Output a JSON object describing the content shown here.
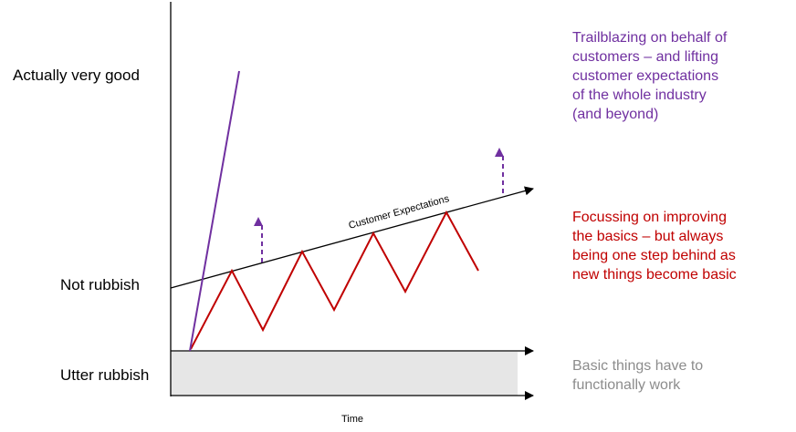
{
  "levels": {
    "top": "Actually very good",
    "middle": "Not rubbish",
    "bottom": "Utter rubbish"
  },
  "curve_label": "Customer Expectations",
  "x_axis_label": "Time",
  "annotations": {
    "trailblazing": "Trailblazing on behalf of\ncustomers – and lifting\ncustomer expectations\nof the whole industry\n(and beyond)",
    "focussing": "Focussing on improving\nthe basics – but always\nbeing one step behind as\nnew things become basic",
    "basic": "Basic things have to\nfunctionally work"
  },
  "colors": {
    "purple": "#7030a0",
    "red": "#c00000",
    "grey_text": "#8c8c8c",
    "band": "#e6e6e6"
  }
}
